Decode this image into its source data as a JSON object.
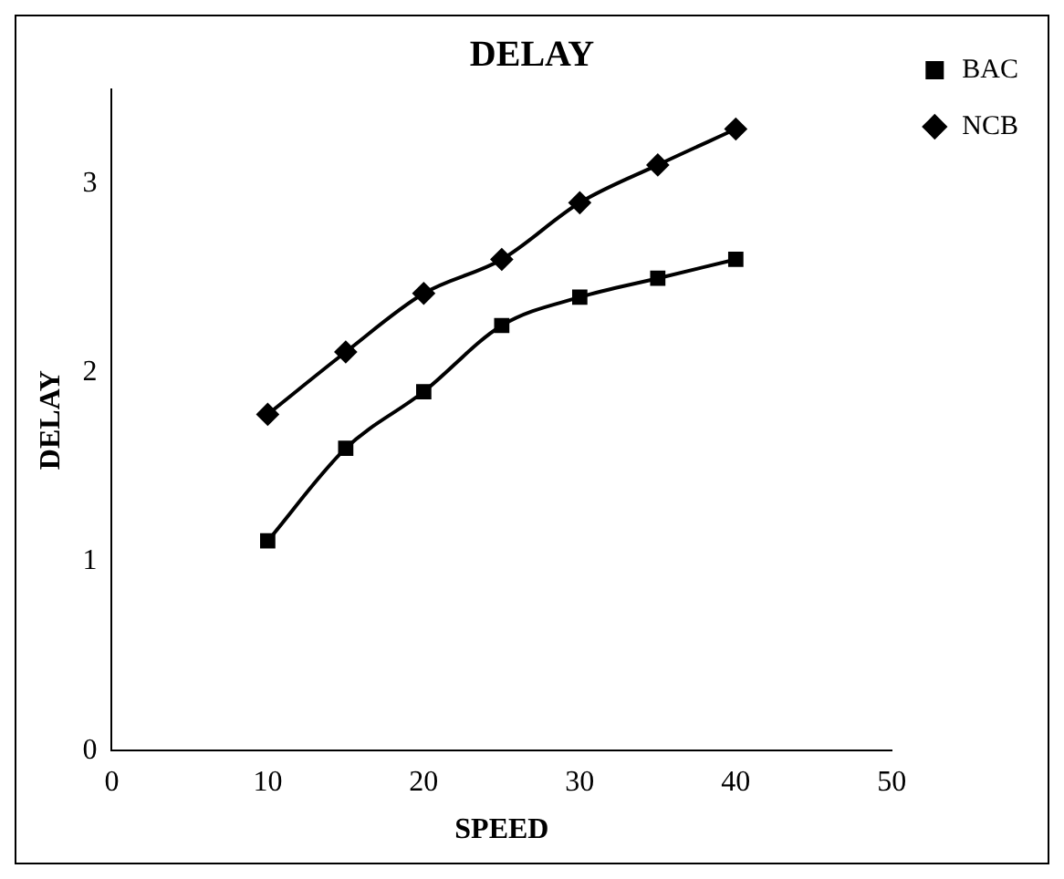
{
  "chart_data": {
    "type": "line",
    "title": "DELAY",
    "xlabel": "SPEED",
    "ylabel": "DELAY",
    "x": [
      10,
      15,
      20,
      25,
      30,
      35,
      40
    ],
    "series": [
      {
        "name": "BAC",
        "color": "#000000",
        "marker": "square",
        "values": [
          1.11,
          1.6,
          1.9,
          2.25,
          2.4,
          2.5,
          2.6
        ]
      },
      {
        "name": "NCB",
        "color": "#000000",
        "marker": "diamond",
        "values": [
          1.78,
          2.11,
          2.42,
          2.6,
          2.9,
          3.1,
          3.29
        ]
      }
    ],
    "xlim": [
      0,
      50
    ],
    "xticks": [
      0,
      10,
      20,
      30,
      40,
      50
    ],
    "ylim": [
      0,
      3.5
    ],
    "yticks": [
      0,
      1,
      2,
      3
    ],
    "grid": false,
    "legend": "top right",
    "line_style": "solid"
  }
}
